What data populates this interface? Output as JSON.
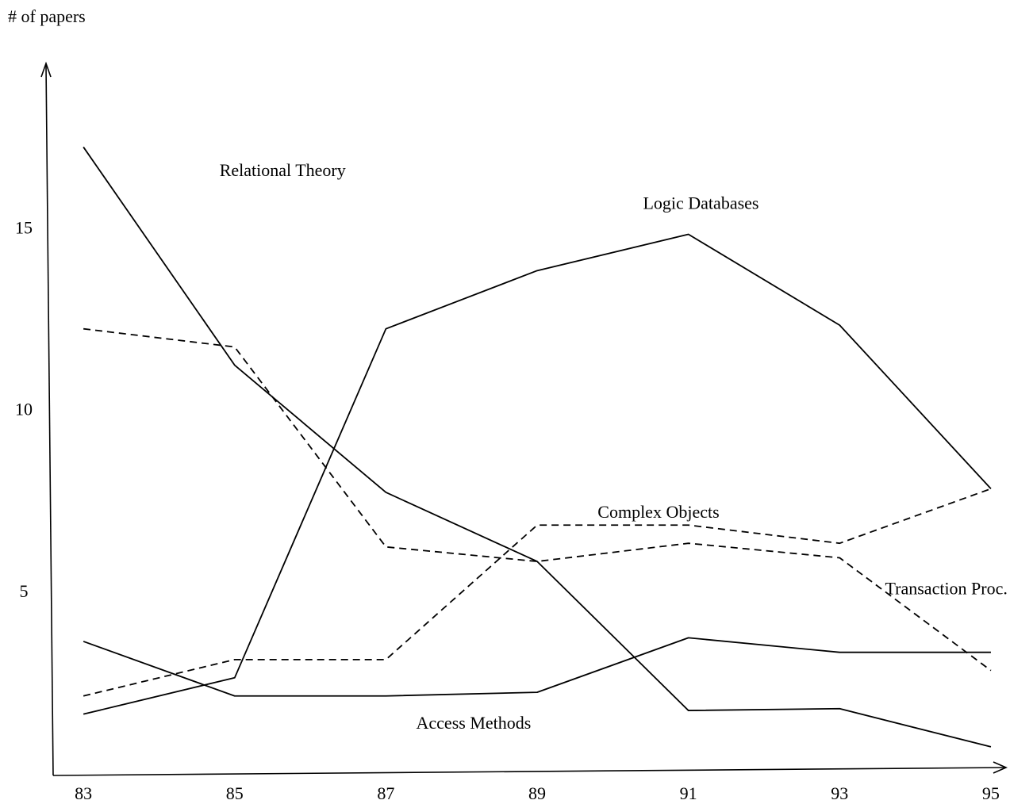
{
  "chart_data": {
    "type": "line",
    "ylabel": "# of papers",
    "xlabel": "",
    "x": [
      83,
      85,
      87,
      89,
      91,
      93,
      95
    ],
    "x_tick_labels": [
      "83",
      "85",
      "87",
      "89",
      "91",
      "93",
      "95"
    ],
    "y_ticks": [
      5,
      10,
      15
    ],
    "y_tick_labels": [
      "5",
      "10",
      "15"
    ],
    "xlim": [
      82.6,
      95.2
    ],
    "ylim": [
      0,
      19.5
    ],
    "grid": false,
    "legend": "none",
    "series": [
      {
        "name": "Relational Theory",
        "style": "solid",
        "values": [
          17.2,
          11.2,
          7.7,
          5.8,
          1.7,
          1.75,
          0.7
        ],
        "label_at": [
          84.8,
          16.4
        ]
      },
      {
        "name": "Logic Databases",
        "style": "solid",
        "values": [
          1.6,
          2.6,
          12.2,
          13.8,
          14.8,
          12.3,
          7.8
        ],
        "label_at": [
          90.4,
          15.5
        ]
      },
      {
        "name": "Complex Objects",
        "style": "dashed",
        "values": [
          2.1,
          3.1,
          3.1,
          6.8,
          6.8,
          6.3,
          7.8
        ],
        "label_at": [
          89.8,
          7.0
        ]
      },
      {
        "name": "Transaction Proc.",
        "style": "dashed",
        "values": [
          12.2,
          11.7,
          6.2,
          5.8,
          6.3,
          5.9,
          2.8
        ],
        "label_at": [
          93.6,
          4.9
        ]
      },
      {
        "name": "Access Methods",
        "style": "solid",
        "values": [
          3.6,
          2.1,
          2.1,
          2.2,
          3.7,
          3.3,
          3.3
        ],
        "label_at": [
          87.4,
          1.2
        ]
      }
    ]
  }
}
